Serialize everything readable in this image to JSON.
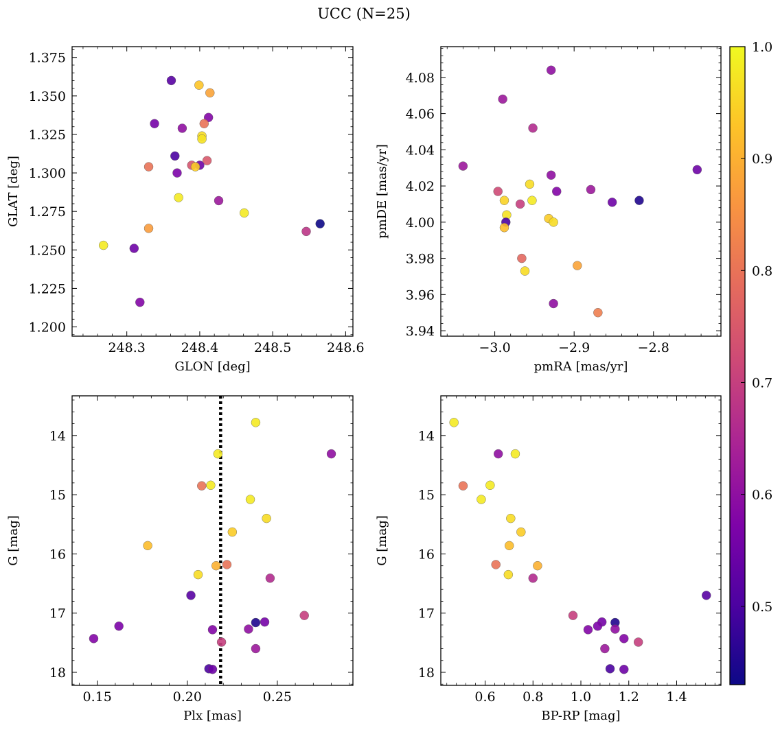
{
  "title": "UCC (N=25)",
  "colorbar": {
    "cmap": "plasma",
    "range": [
      0.43,
      1.0
    ],
    "ticks": [
      "0.5",
      "0.6",
      "0.7",
      "0.8",
      "0.9",
      "1.0"
    ],
    "tick_values": [
      0.5,
      0.6,
      0.7,
      0.8,
      0.9,
      1.0
    ]
  },
  "chart_data": [
    {
      "type": "scatter",
      "xlabel": "GLON [deg]",
      "ylabel": "GLAT [deg]",
      "xlim": [
        248.225,
        248.61
      ],
      "ylim": [
        1.194,
        1.382
      ],
      "xticks": [
        248.3,
        248.4,
        248.5,
        248.6
      ],
      "xtick_labels": [
        "248.3",
        "248.4",
        "248.5",
        "248.6"
      ],
      "yticks": [
        1.2,
        1.225,
        1.25,
        1.275,
        1.3,
        1.325,
        1.35,
        1.375
      ],
      "ytick_labels": [
        "1.200",
        "1.225",
        "1.250",
        "1.275",
        "1.300",
        "1.325",
        "1.350",
        "1.375"
      ],
      "invert_y": false,
      "points": [
        {
          "x": 248.361,
          "y": 1.36,
          "c": 0.52
        },
        {
          "x": 248.399,
          "y": 1.357,
          "c": 0.93
        },
        {
          "x": 248.414,
          "y": 1.352,
          "c": 0.88
        },
        {
          "x": 248.412,
          "y": 1.336,
          "c": 0.58
        },
        {
          "x": 248.338,
          "y": 1.332,
          "c": 0.56
        },
        {
          "x": 248.406,
          "y": 1.332,
          "c": 0.8
        },
        {
          "x": 248.376,
          "y": 1.329,
          "c": 0.6
        },
        {
          "x": 248.403,
          "y": 1.324,
          "c": 0.96
        },
        {
          "x": 248.403,
          "y": 1.322,
          "c": 0.97
        },
        {
          "x": 248.366,
          "y": 1.311,
          "c": 0.5
        },
        {
          "x": 248.41,
          "y": 1.308,
          "c": 0.75
        },
        {
          "x": 248.389,
          "y": 1.305,
          "c": 0.74
        },
        {
          "x": 248.4,
          "y": 1.305,
          "c": 0.55
        },
        {
          "x": 248.394,
          "y": 1.304,
          "c": 0.94
        },
        {
          "x": 248.33,
          "y": 1.304,
          "c": 0.8
        },
        {
          "x": 248.369,
          "y": 1.3,
          "c": 0.57
        },
        {
          "x": 248.371,
          "y": 1.284,
          "c": 0.98
        },
        {
          "x": 248.426,
          "y": 1.282,
          "c": 0.62
        },
        {
          "x": 248.461,
          "y": 1.274,
          "c": 0.98
        },
        {
          "x": 248.565,
          "y": 1.267,
          "c": 0.43
        },
        {
          "x": 248.33,
          "y": 1.264,
          "c": 0.87
        },
        {
          "x": 248.546,
          "y": 1.262,
          "c": 0.68
        },
        {
          "x": 248.268,
          "y": 1.253,
          "c": 0.98
        },
        {
          "x": 248.31,
          "y": 1.251,
          "c": 0.55
        },
        {
          "x": 248.318,
          "y": 1.216,
          "c": 0.58
        }
      ]
    },
    {
      "type": "scatter",
      "xlabel": "pmRA [mas/yr]",
      "ylabel": "pmDE [mas/yr]",
      "xlim": [
        -3.068,
        -2.715
      ],
      "ylim": [
        3.937,
        4.097
      ],
      "xticks": [
        -3.0,
        -2.9,
        -2.8
      ],
      "xtick_labels": [
        "−3.0",
        "−2.9",
        "−2.8"
      ],
      "yticks": [
        3.94,
        3.96,
        3.98,
        4.0,
        4.02,
        4.04,
        4.06,
        4.08
      ],
      "ytick_labels": [
        "3.94",
        "3.96",
        "3.98",
        "4.00",
        "4.02",
        "4.04",
        "4.06",
        "4.08"
      ],
      "invert_y": false,
      "points": [
        {
          "x": -2.929,
          "y": 4.084,
          "c": 0.6
        },
        {
          "x": -2.99,
          "y": 4.068,
          "c": 0.62
        },
        {
          "x": -2.952,
          "y": 4.052,
          "c": 0.66
        },
        {
          "x": -3.04,
          "y": 4.031,
          "c": 0.62
        },
        {
          "x": -2.745,
          "y": 4.029,
          "c": 0.55
        },
        {
          "x": -2.929,
          "y": 4.026,
          "c": 0.6
        },
        {
          "x": -2.956,
          "y": 4.021,
          "c": 0.96
        },
        {
          "x": -2.879,
          "y": 4.018,
          "c": 0.62
        },
        {
          "x": -2.996,
          "y": 4.017,
          "c": 0.72
        },
        {
          "x": -2.922,
          "y": 4.017,
          "c": 0.58
        },
        {
          "x": -2.988,
          "y": 4.012,
          "c": 0.95
        },
        {
          "x": -2.953,
          "y": 4.012,
          "c": 0.98
        },
        {
          "x": -2.818,
          "y": 4.012,
          "c": 0.45
        },
        {
          "x": -2.852,
          "y": 4.011,
          "c": 0.55
        },
        {
          "x": -2.968,
          "y": 4.01,
          "c": 0.7
        },
        {
          "x": -2.985,
          "y": 4.004,
          "c": 0.97
        },
        {
          "x": -2.932,
          "y": 4.002,
          "c": 0.94
        },
        {
          "x": -2.986,
          "y": 4.0,
          "c": 0.5
        },
        {
          "x": -2.926,
          "y": 4.0,
          "c": 0.96
        },
        {
          "x": -2.988,
          "y": 3.997,
          "c": 0.92
        },
        {
          "x": -2.966,
          "y": 3.98,
          "c": 0.78
        },
        {
          "x": -2.896,
          "y": 3.976,
          "c": 0.88
        },
        {
          "x": -2.962,
          "y": 3.973,
          "c": 0.96
        },
        {
          "x": -2.926,
          "y": 3.955,
          "c": 0.6
        },
        {
          "x": -2.87,
          "y": 3.95,
          "c": 0.82
        }
      ]
    },
    {
      "type": "scatter",
      "xlabel": "Plx [mas]",
      "ylabel": "G [mag]",
      "xlim": [
        0.136,
        0.292
      ],
      "ylim": [
        18.22,
        13.33
      ],
      "xticks": [
        0.15,
        0.2,
        0.25
      ],
      "xtick_labels": [
        "0.15",
        "0.20",
        "0.25"
      ],
      "yticks": [
        14,
        15,
        16,
        17,
        18
      ],
      "ytick_labels": [
        "14",
        "15",
        "16",
        "17",
        "18"
      ],
      "invert_y": true,
      "vline": 0.2185,
      "points": [
        {
          "x": 0.238,
          "y": 13.78,
          "c": 0.98
        },
        {
          "x": 0.217,
          "y": 14.31,
          "c": 0.98
        },
        {
          "x": 0.28,
          "y": 14.31,
          "c": 0.6
        },
        {
          "x": 0.208,
          "y": 14.85,
          "c": 0.8
        },
        {
          "x": 0.213,
          "y": 14.84,
          "c": 0.98
        },
        {
          "x": 0.235,
          "y": 15.08,
          "c": 0.98
        },
        {
          "x": 0.244,
          "y": 15.4,
          "c": 0.96
        },
        {
          "x": 0.225,
          "y": 15.63,
          "c": 0.94
        },
        {
          "x": 0.178,
          "y": 15.86,
          "c": 0.92
        },
        {
          "x": 0.216,
          "y": 16.2,
          "c": 0.9
        },
        {
          "x": 0.222,
          "y": 16.18,
          "c": 0.8
        },
        {
          "x": 0.206,
          "y": 16.35,
          "c": 0.96
        },
        {
          "x": 0.246,
          "y": 16.41,
          "c": 0.66
        },
        {
          "x": 0.202,
          "y": 16.7,
          "c": 0.52
        },
        {
          "x": 0.265,
          "y": 17.04,
          "c": 0.7
        },
        {
          "x": 0.238,
          "y": 17.16,
          "c": 0.45
        },
        {
          "x": 0.243,
          "y": 17.15,
          "c": 0.56
        },
        {
          "x": 0.162,
          "y": 17.22,
          "c": 0.57
        },
        {
          "x": 0.234,
          "y": 17.27,
          "c": 0.6
        },
        {
          "x": 0.214,
          "y": 17.28,
          "c": 0.58
        },
        {
          "x": 0.148,
          "y": 17.43,
          "c": 0.58
        },
        {
          "x": 0.219,
          "y": 17.49,
          "c": 0.7
        },
        {
          "x": 0.238,
          "y": 17.6,
          "c": 0.62
        },
        {
          "x": 0.212,
          "y": 17.94,
          "c": 0.5
        },
        {
          "x": 0.214,
          "y": 17.95,
          "c": 0.55
        }
      ]
    },
    {
      "type": "scatter",
      "xlabel": "BP-RP [mag]",
      "ylabel": "G [mag]",
      "xlim": [
        0.415,
        1.585
      ],
      "ylim": [
        18.22,
        13.33
      ],
      "xticks": [
        0.6,
        0.8,
        1.0,
        1.2,
        1.4
      ],
      "xtick_labels": [
        "0.6",
        "0.8",
        "1.0",
        "1.2",
        "1.4"
      ],
      "yticks": [
        14,
        15,
        16,
        17,
        18
      ],
      "ytick_labels": [
        "14",
        "15",
        "16",
        "17",
        "18"
      ],
      "invert_y": true,
      "points": [
        {
          "x": 0.47,
          "y": 13.78,
          "c": 0.98
        },
        {
          "x": 0.655,
          "y": 14.31,
          "c": 0.6
        },
        {
          "x": 0.726,
          "y": 14.31,
          "c": 0.98
        },
        {
          "x": 0.508,
          "y": 14.85,
          "c": 0.8
        },
        {
          "x": 0.621,
          "y": 14.84,
          "c": 0.98
        },
        {
          "x": 0.584,
          "y": 15.08,
          "c": 0.98
        },
        {
          "x": 0.707,
          "y": 15.4,
          "c": 0.96
        },
        {
          "x": 0.75,
          "y": 15.63,
          "c": 0.94
        },
        {
          "x": 0.701,
          "y": 15.86,
          "c": 0.92
        },
        {
          "x": 0.645,
          "y": 16.18,
          "c": 0.8
        },
        {
          "x": 0.819,
          "y": 16.2,
          "c": 0.9
        },
        {
          "x": 0.697,
          "y": 16.35,
          "c": 0.96
        },
        {
          "x": 0.8,
          "y": 16.41,
          "c": 0.66
        },
        {
          "x": 1.524,
          "y": 16.7,
          "c": 0.52
        },
        {
          "x": 0.967,
          "y": 17.04,
          "c": 0.7
        },
        {
          "x": 1.143,
          "y": 17.16,
          "c": 0.45
        },
        {
          "x": 1.088,
          "y": 17.15,
          "c": 0.56
        },
        {
          "x": 1.07,
          "y": 17.22,
          "c": 0.57
        },
        {
          "x": 1.143,
          "y": 17.27,
          "c": 0.6
        },
        {
          "x": 1.03,
          "y": 17.28,
          "c": 0.58
        },
        {
          "x": 1.18,
          "y": 17.43,
          "c": 0.58
        },
        {
          "x": 1.24,
          "y": 17.49,
          "c": 0.7
        },
        {
          "x": 1.1,
          "y": 17.6,
          "c": 0.62
        },
        {
          "x": 1.122,
          "y": 17.94,
          "c": 0.5
        },
        {
          "x": 1.18,
          "y": 17.95,
          "c": 0.55
        }
      ]
    }
  ]
}
